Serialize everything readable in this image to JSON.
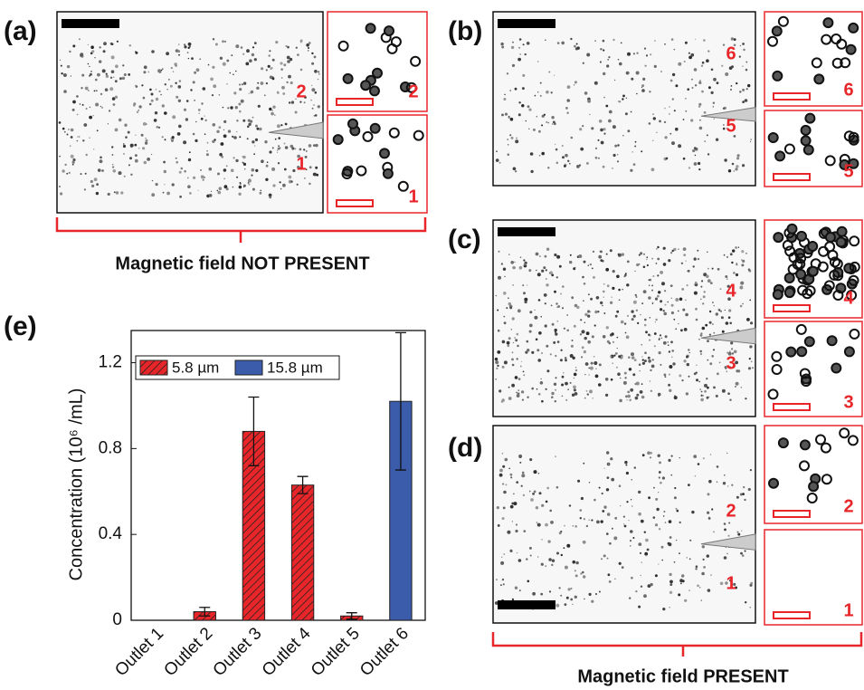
{
  "panels": [
    {
      "label": "(a)",
      "numbers": [
        "2",
        "1"
      ],
      "inset_numbers": [
        "2",
        "1"
      ]
    },
    {
      "label": "(b)",
      "numbers": [
        "6",
        "5"
      ],
      "inset_numbers": [
        "6",
        "5"
      ]
    },
    {
      "label": "(c)",
      "numbers": [
        "4",
        "3"
      ],
      "inset_numbers": [
        "4",
        "3"
      ]
    },
    {
      "label": "(d)",
      "numbers": [
        "2",
        "1"
      ],
      "inset_numbers": [
        "2",
        "1"
      ]
    }
  ],
  "annotations": [
    "Magnetic field NOT PRESENT",
    "Magnetic field PRESENT"
  ],
  "chart_data": {
    "type": "bar",
    "panel_label": "(e)",
    "y_label": "Concentration (10⁶ /mL)",
    "categories": [
      "Outlet 1",
      "Outlet 2",
      "Outlet 3",
      "Outlet 4",
      "Outlet 5",
      "Outlet 6"
    ],
    "series": [
      {
        "name": "5.8 µm",
        "color": "#e8262a",
        "hatch": true,
        "values": [
          0,
          0.04,
          0.88,
          0.63,
          0.02,
          null
        ],
        "errors": [
          null,
          0.02,
          0.16,
          0.04,
          0.015,
          null
        ]
      },
      {
        "name": "15.8 µm",
        "color": "#3b5bab",
        "hatch": false,
        "values": [
          null,
          null,
          null,
          null,
          null,
          1.02
        ],
        "errors": [
          null,
          null,
          null,
          null,
          null,
          0.32
        ]
      }
    ],
    "ylim": [
      0,
      1.35
    ],
    "yticks": [
      0,
      0.4,
      0.8,
      1.2
    ]
  }
}
